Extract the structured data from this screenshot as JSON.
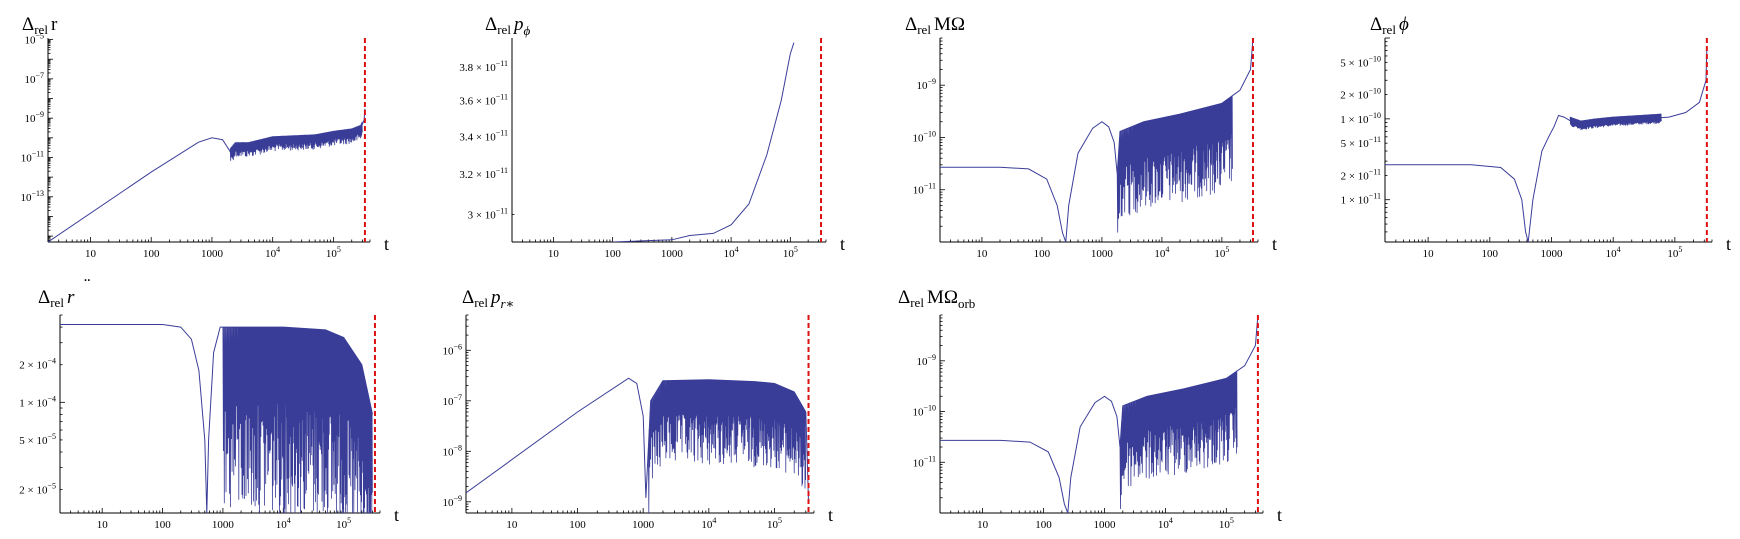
{
  "figure": {
    "description_colors": {
      "series": "#3a3d98",
      "marker": "#dd1111",
      "axis": "#000000"
    },
    "x_axis_label": "t"
  },
  "chart_data": [
    {
      "type": "line",
      "id": "dr",
      "title": {
        "delta": "Δ",
        "sub": "rel",
        "main": "r",
        "sup": "",
        "sub2": "",
        "italic": false
      },
      "xscale": "log",
      "xlim": [
        2,
        400000
      ],
      "x_ticks": [
        {
          "v": 10,
          "b": "10",
          "e": ""
        },
        {
          "v": 100,
          "b": "100",
          "e": ""
        },
        {
          "v": 1000,
          "b": "1000",
          "e": ""
        },
        {
          "v": 10000,
          "b": "10",
          "e": "4"
        },
        {
          "v": 100000,
          "b": "10",
          "e": "5"
        }
      ],
      "yscale": "log",
      "ylim": [
        5e-16,
        1.2e-05
      ],
      "y_ticks": [
        {
          "v": 1e-05,
          "m": "",
          "b": "10",
          "e": "−5"
        },
        {
          "v": 1e-07,
          "m": "",
          "b": "10",
          "e": "−7"
        },
        {
          "v": 1e-09,
          "m": "",
          "b": "10",
          "e": "−9"
        },
        {
          "v": 1e-11,
          "m": "",
          "b": "10",
          "e": "−11"
        },
        {
          "v": 1e-13,
          "m": "",
          "b": "10",
          "e": "−13"
        }
      ],
      "marker_t": 330000,
      "series": {
        "x": [
          2,
          100,
          600,
          1000,
          1500,
          2000,
          2400,
          4000,
          10000,
          50000,
          100000,
          200000,
          280000,
          320000,
          330000
        ],
        "y": [
          5e-16,
          1.8e-12,
          6e-11,
          1e-10,
          8e-11,
          2e-11,
          4e-11,
          4e-11,
          8e-11,
          1e-10,
          1.5e-10,
          2e-10,
          3e-10,
          8e-10,
          3e-09
        ]
      },
      "oscillation": {
        "start": 2000,
        "end": 300000,
        "mode": "log",
        "low": 0.25,
        "high": 1.5
      }
    },
    {
      "type": "line",
      "id": "dpphi",
      "title": {
        "delta": "Δ",
        "sub": "rel",
        "main": "p",
        "sup": "",
        "sub2": "ϕ",
        "italic": true
      },
      "xscale": "log",
      "xlim": [
        2,
        400000
      ],
      "x_ticks": [
        {
          "v": 10,
          "b": "10",
          "e": ""
        },
        {
          "v": 100,
          "b": "100",
          "e": ""
        },
        {
          "v": 1000,
          "b": "1000",
          "e": ""
        },
        {
          "v": 10000,
          "b": "10",
          "e": "4"
        },
        {
          "v": 100000,
          "b": "10",
          "e": "5"
        }
      ],
      "yscale": "log",
      "ylim": [
        2.87e-11,
        3.98e-11
      ],
      "y_ticks": [
        {
          "v": 3.8e-11,
          "m": "3.8",
          "b": "10",
          "e": "−11"
        },
        {
          "v": 3.6e-11,
          "m": "3.6",
          "b": "10",
          "e": "−11"
        },
        {
          "v": 3.4e-11,
          "m": "3.4",
          "b": "10",
          "e": "−11"
        },
        {
          "v": 3.2e-11,
          "m": "3.2",
          "b": "10",
          "e": "−11"
        },
        {
          "v": 3e-11,
          "m": "3",
          "b": "10",
          "e": "−11"
        }
      ],
      "marker_t": 330000,
      "series": {
        "x": [
          100,
          1000,
          2000,
          5000,
          10000,
          20000,
          40000,
          70000,
          100000,
          115000
        ],
        "y": [
          2.87e-11,
          2.88e-11,
          2.9e-11,
          2.91e-11,
          2.95e-11,
          3.05e-11,
          3.3e-11,
          3.6e-11,
          3.88e-11,
          3.95e-11
        ]
      }
    },
    {
      "type": "line",
      "id": "domega",
      "title": {
        "delta": "Δ",
        "sub": "rel",
        "main": "MΩ",
        "sup": "",
        "sub2": "",
        "italic": false
      },
      "xscale": "log",
      "xlim": [
        2,
        400000
      ],
      "x_ticks": [
        {
          "v": 10,
          "b": "10",
          "e": ""
        },
        {
          "v": 100,
          "b": "100",
          "e": ""
        },
        {
          "v": 1000,
          "b": "1000",
          "e": ""
        },
        {
          "v": 10000,
          "b": "10",
          "e": "4"
        },
        {
          "v": 100000,
          "b": "10",
          "e": "5"
        }
      ],
      "yscale": "log",
      "ylim": [
        1e-12,
        8e-09
      ],
      "y_ticks": [
        {
          "v": 1e-09,
          "m": "",
          "b": "10",
          "e": "−9"
        },
        {
          "v": 1e-10,
          "m": "",
          "b": "10",
          "e": "−10"
        },
        {
          "v": 1e-11,
          "m": "",
          "b": "10",
          "e": "−11"
        }
      ],
      "marker_t": 330000,
      "series": {
        "x": [
          2,
          20,
          60,
          120,
          180,
          220,
          250,
          280,
          400,
          700,
          1000,
          1300,
          1600,
          1800,
          2000,
          5000,
          20000,
          100000,
          200000,
          300000,
          330000
        ],
        "y": [
          2.7e-11,
          2.7e-11,
          2.5e-11,
          1.6e-11,
          5e-12,
          1.5e-12,
          1e-12,
          5e-12,
          5e-11,
          1.5e-10,
          2e-10,
          1.6e-10,
          8e-11,
          2e-11,
          1.3e-10,
          2e-10,
          2.8e-10,
          4.5e-10,
          8e-10,
          2e-09,
          8e-09
        ]
      },
      "oscillation": {
        "start": 1800,
        "end": 150000,
        "mode": "log",
        "low": 0.02,
        "high": 1.0
      }
    },
    {
      "type": "line",
      "id": "dphi",
      "title": {
        "delta": "Δ",
        "sub": "rel",
        "main": "ϕ",
        "sup": "",
        "sub2": "",
        "italic": true
      },
      "xscale": "log",
      "xlim": [
        2,
        400000
      ],
      "x_ticks": [
        {
          "v": 10,
          "b": "10",
          "e": ""
        },
        {
          "v": 100,
          "b": "100",
          "e": ""
        },
        {
          "v": 1000,
          "b": "1000",
          "e": ""
        },
        {
          "v": 10000,
          "b": "10",
          "e": "4"
        },
        {
          "v": 100000,
          "b": "10",
          "e": "5"
        }
      ],
      "yscale": "log",
      "ylim": [
        3e-12,
        1e-09
      ],
      "y_ticks": [
        {
          "v": 5e-10,
          "m": "5",
          "b": "10",
          "e": "−10"
        },
        {
          "v": 2e-10,
          "m": "2",
          "b": "10",
          "e": "−10"
        },
        {
          "v": 1e-10,
          "m": "1",
          "b": "10",
          "e": "−10"
        },
        {
          "v": 5e-11,
          "m": "5",
          "b": "10",
          "e": "−11"
        },
        {
          "v": 2e-11,
          "m": "2",
          "b": "10",
          "e": "−11"
        },
        {
          "v": 1e-11,
          "m": "1",
          "b": "10",
          "e": "−11"
        }
      ],
      "marker_t": 330000,
      "series": {
        "x": [
          2,
          50,
          150,
          250,
          330,
          380,
          420,
          500,
          700,
          900,
          1100,
          1300,
          1600,
          2000,
          3000,
          5000,
          10000,
          30000,
          80000,
          150000,
          250000,
          320000,
          330000
        ],
        "y": [
          2.7e-11,
          2.7e-11,
          2.5e-11,
          1.8e-11,
          1e-11,
          4e-12,
          3e-12,
          1e-11,
          4e-11,
          6e-11,
          8e-11,
          1.1e-10,
          1.05e-10,
          9.5e-11,
          8.5e-11,
          9e-11,
          9.5e-11,
          1e-10,
          1.05e-10,
          1.2e-10,
          1.6e-10,
          3e-10,
          7e-10
        ]
      },
      "oscillation": {
        "start": 2000,
        "end": 60000,
        "mode": "linear",
        "low": 0.85,
        "high": 1.12
      }
    },
    {
      "type": "line",
      "id": "drdd",
      "title": {
        "delta": "Δ",
        "sub": "rel",
        "main": "r",
        "sup": "¨",
        "sub2": "",
        "italic": true
      },
      "xscale": "log",
      "xlim": [
        2,
        400000
      ],
      "x_ticks": [
        {
          "v": 10,
          "b": "10",
          "e": ""
        },
        {
          "v": 100,
          "b": "100",
          "e": ""
        },
        {
          "v": 1000,
          "b": "1000",
          "e": ""
        },
        {
          "v": 10000,
          "b": "10",
          "e": "4"
        },
        {
          "v": 100000,
          "b": "10",
          "e": "5"
        }
      ],
      "yscale": "log",
      "ylim": [
        1.3e-05,
        0.0005
      ],
      "y_ticks": [
        {
          "v": 0.0002,
          "m": "2",
          "b": "10",
          "e": "−4"
        },
        {
          "v": 0.0001,
          "m": "1",
          "b": "10",
          "e": "−4"
        },
        {
          "v": 5e-05,
          "m": "5",
          "b": "10",
          "e": "−5"
        },
        {
          "v": 2e-05,
          "m": "2",
          "b": "10",
          "e": "−5"
        }
      ],
      "marker_t": 330000,
      "series": {
        "x": [
          2,
          100,
          200,
          300,
          400,
          500,
          540,
          580,
          700,
          900,
          1000,
          1500,
          2000,
          10000,
          50000,
          100000,
          200000,
          300000
        ],
        "y": [
          0.00042,
          0.00042,
          0.0004,
          0.00032,
          0.00018,
          5e-05,
          1.3e-05,
          5e-05,
          0.00025,
          0.0004,
          0.0004,
          0.0004,
          0.0004,
          0.0004,
          0.00038,
          0.00033,
          0.0002,
          8e-05
        ]
      },
      "oscillation": {
        "start": 1000,
        "end": 300000,
        "mode": "log",
        "low": 0.03,
        "high": 1.0
      }
    },
    {
      "type": "line",
      "id": "dpr",
      "title": {
        "delta": "Δ",
        "sub": "rel",
        "main": "p",
        "sup": "",
        "sub2": "r∗",
        "italic": true
      },
      "xscale": "log",
      "xlim": [
        2,
        400000
      ],
      "x_ticks": [
        {
          "v": 10,
          "b": "10",
          "e": ""
        },
        {
          "v": 100,
          "b": "100",
          "e": ""
        },
        {
          "v": 1000,
          "b": "1000",
          "e": ""
        },
        {
          "v": 10000,
          "b": "10",
          "e": "4"
        },
        {
          "v": 100000,
          "b": "10",
          "e": "5"
        }
      ],
      "yscale": "log",
      "ylim": [
        6e-10,
        5e-06
      ],
      "y_ticks": [
        {
          "v": 1e-06,
          "m": "",
          "b": "10",
          "e": "−6"
        },
        {
          "v": 1e-07,
          "m": "",
          "b": "10",
          "e": "−7"
        },
        {
          "v": 1e-08,
          "m": "",
          "b": "10",
          "e": "−8"
        },
        {
          "v": 1e-09,
          "m": "",
          "b": "10",
          "e": "−9"
        }
      ],
      "marker_t": 330000,
      "series": {
        "x": [
          2,
          100,
          600,
          800,
          1000,
          1100,
          1300,
          2000,
          10000,
          50000,
          100000,
          200000,
          300000,
          330000
        ],
        "y": [
          1.5e-09,
          6e-08,
          2.8e-07,
          2.2e-07,
          5e-08,
          1.2e-09,
          1e-07,
          2.5e-07,
          2.6e-07,
          2.4e-07,
          2.2e-07,
          1.5e-07,
          6e-08,
          1e-09
        ]
      },
      "oscillation": {
        "start": 1200,
        "end": 300000,
        "mode": "log",
        "low": 0.02,
        "high": 1.0
      }
    },
    {
      "type": "line",
      "id": "domegaorb",
      "title": {
        "delta": "Δ",
        "sub": "rel",
        "main": "MΩ",
        "sup": "",
        "sub2": "orb",
        "italic": false
      },
      "xscale": "log",
      "xlim": [
        2,
        400000
      ],
      "x_ticks": [
        {
          "v": 10,
          "b": "10",
          "e": ""
        },
        {
          "v": 100,
          "b": "100",
          "e": ""
        },
        {
          "v": 1000,
          "b": "1000",
          "e": ""
        },
        {
          "v": 10000,
          "b": "10",
          "e": "4"
        },
        {
          "v": 100000,
          "b": "10",
          "e": "5"
        }
      ],
      "yscale": "log",
      "ylim": [
        1e-12,
        8e-09
      ],
      "y_ticks": [
        {
          "v": 1e-09,
          "m": "",
          "b": "10",
          "e": "−9"
        },
        {
          "v": 1e-10,
          "m": "",
          "b": "10",
          "e": "−10"
        },
        {
          "v": 1e-11,
          "m": "",
          "b": "10",
          "e": "−11"
        }
      ],
      "marker_t": 330000,
      "series": {
        "x": [
          2,
          20,
          60,
          120,
          180,
          220,
          250,
          280,
          400,
          700,
          1000,
          1300,
          1600,
          1800,
          2000,
          5000,
          20000,
          100000,
          200000,
          300000,
          330000
        ],
        "y": [
          2.7e-11,
          2.7e-11,
          2.5e-11,
          1.6e-11,
          5e-12,
          1.5e-12,
          1e-12,
          5e-12,
          5e-11,
          1.5e-10,
          2e-10,
          1.6e-10,
          8e-11,
          2e-11,
          1.3e-10,
          2e-10,
          2.8e-10,
          4.5e-10,
          8e-10,
          2e-09,
          8e-09
        ]
      },
      "oscillation": {
        "start": 1800,
        "end": 150000,
        "mode": "log",
        "low": 0.02,
        "high": 1.0
      }
    }
  ]
}
